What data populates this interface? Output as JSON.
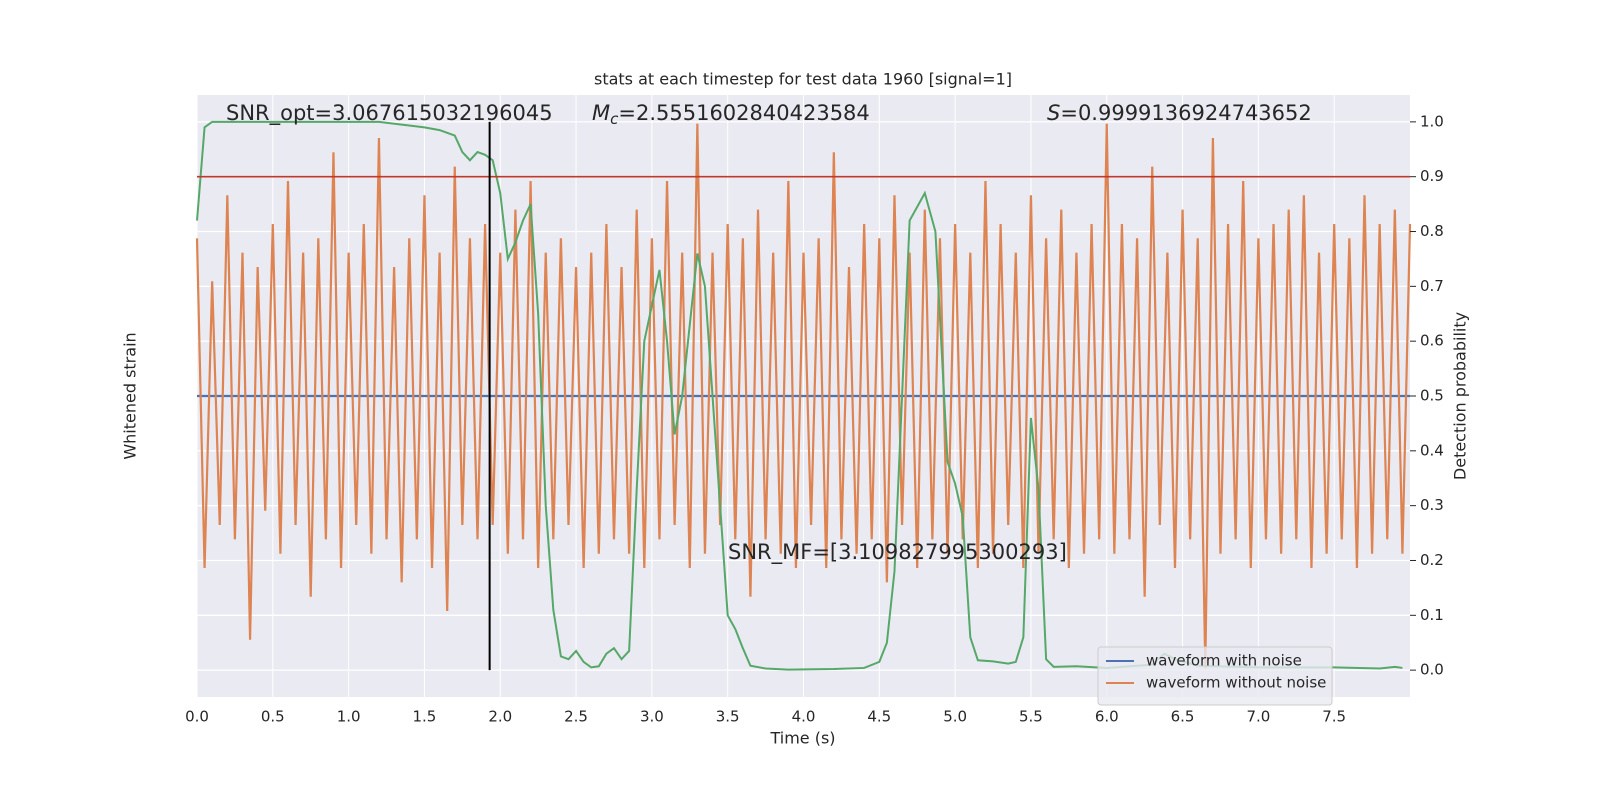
{
  "chart_data": {
    "type": "line",
    "title": "stats at each timestep for test data 1960 [signal=1]",
    "xlabel": "Time (s)",
    "ylabel": "Whitened strain",
    "y2label": "Detection probability",
    "xlim": [
      0,
      8.0
    ],
    "xticks": [
      {
        "value": 0,
        "label": "0.0"
      },
      0.5,
      {
        "value": 1,
        "label": "1.0"
      },
      1.5,
      {
        "value": 2,
        "label": "2.0"
      },
      2.5,
      {
        "value": 3,
        "label": "3.0"
      },
      3.5,
      {
        "value": 4,
        "label": "4.0"
      },
      4.5,
      {
        "value": 5,
        "label": "5.0"
      },
      5.5,
      {
        "value": 6,
        "label": "6.0"
      },
      6.5,
      {
        "value": 7,
        "label": "7.0"
      },
      7.5
    ],
    "ylim": [
      -1.05,
      1.05
    ],
    "y2lim": [
      -0.049,
      1.049
    ],
    "y2ticks": [
      {
        "value": 0,
        "label": "0.0"
      },
      0.1,
      0.2,
      0.3,
      0.4,
      0.5,
      0.6,
      0.7,
      0.8,
      0.9,
      {
        "value": 1,
        "label": "1.0"
      }
    ],
    "grid": true,
    "legend": "lower right",
    "series": [
      {
        "name": "waveform with noise",
        "color": "#4c72b0",
        "x": [
          0,
          8.0
        ],
        "values": [
          0,
          0
        ]
      },
      {
        "name": "waveform without noise",
        "color": "#dd8452",
        "x": [
          0,
          0.05,
          0.1,
          0.15,
          0.2,
          0.25,
          0.3,
          0.35,
          0.4,
          0.45,
          0.5,
          0.55,
          0.6,
          0.65,
          0.7,
          0.75,
          0.8,
          0.85,
          0.9,
          0.95,
          1.0,
          1.05,
          1.1,
          1.15,
          1.2,
          1.25,
          1.3,
          1.35,
          1.4,
          1.45,
          1.5,
          1.55,
          1.6,
          1.65,
          1.7,
          1.75,
          1.8,
          1.85,
          1.9,
          1.95,
          2.0,
          2.05,
          2.1,
          2.15,
          2.2,
          2.25,
          2.3,
          2.35,
          2.4,
          2.45,
          2.5,
          2.55,
          2.6,
          2.65,
          2.7,
          2.75,
          2.8,
          2.85,
          2.9,
          2.95,
          3.0,
          3.05,
          3.1,
          3.15,
          3.2,
          3.25,
          3.3,
          3.35,
          3.4,
          3.45,
          3.5,
          3.55,
          3.6,
          3.65,
          3.7,
          3.75,
          3.8,
          3.85,
          3.9,
          3.95,
          4.0,
          4.05,
          4.1,
          4.15,
          4.2,
          4.25,
          4.3,
          4.35,
          4.4,
          4.45,
          4.5,
          4.55,
          4.6,
          4.65,
          4.7,
          4.75,
          4.8,
          4.85,
          4.9,
          4.95,
          5.0,
          5.05,
          5.1,
          5.15,
          5.2,
          5.25,
          5.3,
          5.35,
          5.4,
          5.45,
          5.5,
          5.55,
          5.6,
          5.65,
          5.7,
          5.75,
          5.8,
          5.85,
          5.9,
          5.95,
          6.0,
          6.05,
          6.1,
          6.15,
          6.2,
          6.25,
          6.3,
          6.35,
          6.4,
          6.45,
          6.5,
          6.55,
          6.6,
          6.65,
          6.7,
          6.75,
          6.8,
          6.85,
          6.9,
          6.95,
          7.0,
          7.05,
          7.1,
          7.15,
          7.2,
          7.25,
          7.3,
          7.35,
          7.4,
          7.45,
          7.5,
          7.55,
          7.6,
          7.65,
          7.7,
          7.75,
          7.8,
          7.85,
          7.9,
          7.95,
          8.0
        ],
        "values": [
          0.55,
          -0.6,
          0.4,
          -0.45,
          0.7,
          -0.5,
          0.5,
          -0.85,
          0.45,
          -0.4,
          0.6,
          -0.55,
          0.75,
          -0.45,
          0.5,
          -0.7,
          0.55,
          -0.5,
          0.85,
          -0.6,
          0.5,
          -0.45,
          0.6,
          -0.55,
          0.9,
          -0.5,
          0.45,
          -0.65,
          0.55,
          -0.5,
          0.7,
          -0.6,
          0.5,
          -0.75,
          0.8,
          -0.45,
          0.55,
          -0.5,
          0.6,
          -0.45,
          0.5,
          -0.55,
          0.65,
          -0.5,
          0.75,
          -0.6,
          0.5,
          -0.5,
          0.55,
          -0.45,
          0.45,
          -0.6,
          0.5,
          -0.55,
          0.6,
          -0.5,
          0.45,
          -0.55,
          0.65,
          -0.6,
          0.55,
          -0.5,
          0.75,
          -0.45,
          0.5,
          -0.6,
          0.95,
          -0.55,
          0.5,
          -0.45,
          0.6,
          -0.5,
          0.55,
          -0.7,
          0.65,
          -0.5,
          0.5,
          -0.55,
          0.75,
          -0.6,
          0.5,
          -0.45,
          0.55,
          -0.6,
          0.85,
          -0.5,
          0.45,
          -0.55,
          0.6,
          -0.5,
          0.55,
          -0.65,
          0.7,
          -0.45,
          0.5,
          -0.6,
          0.65,
          -0.5,
          0.55,
          -0.55,
          0.6,
          -0.5,
          0.5,
          -0.6,
          0.75,
          -0.55,
          0.6,
          -0.45,
          0.5,
          -0.6,
          0.7,
          -0.55,
          0.55,
          -0.5,
          0.65,
          -0.6,
          0.5,
          -0.55,
          0.6,
          -0.5,
          0.95,
          -0.55,
          0.6,
          -0.5,
          0.55,
          -0.7,
          0.8,
          -0.45,
          0.5,
          -0.6,
          0.65,
          -0.5,
          0.55,
          -0.95,
          0.9,
          -0.55,
          0.6,
          -0.5,
          0.75,
          -0.6,
          0.55,
          -0.5,
          0.6,
          -0.55,
          0.65,
          -0.5,
          0.7,
          -0.6,
          0.5,
          -0.55,
          0.6,
          -0.5,
          0.55,
          -0.6,
          0.7,
          -0.55,
          0.6,
          -0.5,
          0.65,
          -0.55,
          0.6
        ]
      },
      {
        "color": "#55a868",
        "axis": "y2",
        "x": [
          0,
          0.05,
          0.1,
          0.3,
          0.6,
          0.9,
          1.2,
          1.35,
          1.5,
          1.6,
          1.7,
          1.75,
          1.8,
          1.85,
          1.9,
          1.95,
          2.0,
          2.05,
          2.1,
          2.15,
          2.2,
          2.25,
          2.3,
          2.35,
          2.4,
          2.45,
          2.5,
          2.55,
          2.6,
          2.65,
          2.7,
          2.75,
          2.8,
          2.85,
          2.9,
          2.95,
          3.05,
          3.1,
          3.15,
          3.2,
          3.3,
          3.35,
          3.45,
          3.5,
          3.55,
          3.6,
          3.65,
          3.75,
          3.9,
          4.2,
          4.4,
          4.5,
          4.55,
          4.6,
          4.65,
          4.7,
          4.8,
          4.87,
          4.95,
          5.0,
          5.05,
          5.1,
          5.15,
          5.25,
          5.35,
          5.4,
          5.45,
          5.5,
          5.55,
          5.6,
          5.65,
          5.8,
          6.0,
          6.3,
          6.38,
          6.45,
          6.6,
          7.0,
          7.5,
          7.8,
          7.9,
          7.95
        ],
        "values": [
          0.82,
          0.99,
          1.0,
          1.0,
          1.0,
          1.0,
          1.0,
          0.995,
          0.99,
          0.985,
          0.975,
          0.945,
          0.93,
          0.945,
          0.94,
          0.93,
          0.87,
          0.75,
          0.78,
          0.82,
          0.85,
          0.65,
          0.3,
          0.11,
          0.025,
          0.02,
          0.035,
          0.015,
          0.005,
          0.007,
          0.03,
          0.04,
          0.02,
          0.035,
          0.33,
          0.6,
          0.73,
          0.6,
          0.43,
          0.5,
          0.76,
          0.7,
          0.3,
          0.1,
          0.075,
          0.04,
          0.008,
          0.003,
          0.001,
          0.002,
          0.004,
          0.015,
          0.05,
          0.18,
          0.5,
          0.82,
          0.87,
          0.8,
          0.38,
          0.34,
          0.28,
          0.06,
          0.018,
          0.016,
          0.012,
          0.015,
          0.06,
          0.46,
          0.33,
          0.02,
          0.006,
          0.007,
          0.004,
          0.01,
          0.03,
          0.02,
          0.008,
          0.005,
          0.005,
          0.003,
          0.006,
          0.004
        ]
      }
    ],
    "threshold": {
      "value": 0.9,
      "color": "#c0392b",
      "axis": "y2"
    },
    "marker_x": {
      "value": 1.93,
      "color": "#000000"
    },
    "annotations": [
      {
        "text": "SNR_opt=3.067615032196045"
      },
      {
        "symbol": "M",
        "subscript": "c",
        "text": "=2.5551602840423584"
      },
      {
        "symbol": "S",
        "text": "=0.9999136924743652"
      },
      {
        "text": "SNR_MF=[3.109827995300293]"
      }
    ]
  }
}
